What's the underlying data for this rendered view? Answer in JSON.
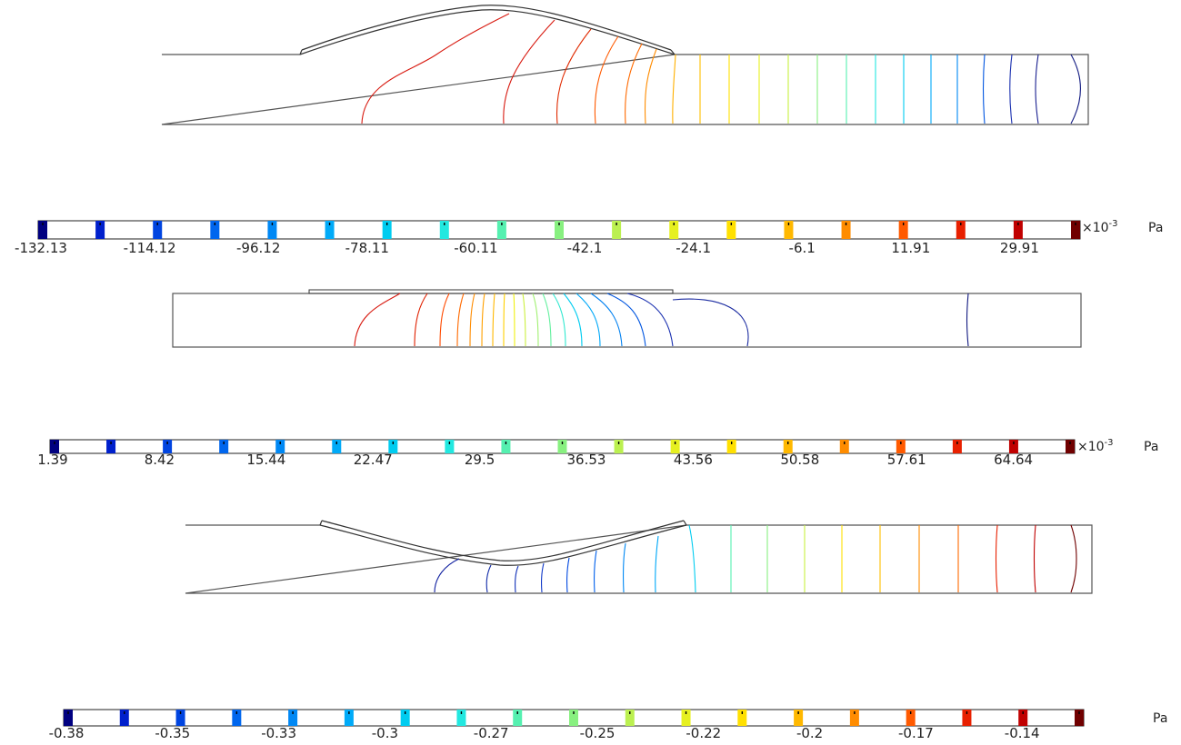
{
  "palette": [
    "#000080",
    "#0020cc",
    "#0044e0",
    "#0066ee",
    "#0088f4",
    "#00aaf8",
    "#00ccf0",
    "#22e8e0",
    "#55f0b0",
    "#88f080",
    "#bbf050",
    "#e6f020",
    "#ffe000",
    "#ffb800",
    "#ff8c00",
    "#ff5a00",
    "#e82000",
    "#c00000",
    "#700000"
  ],
  "colorbars": [
    {
      "ticks": [
        "-132.13",
        "-114.12",
        "-96.12",
        "-78.11",
        "-60.11",
        "-42.1",
        "-24.1",
        "-6.1",
        "11.91",
        "29.91"
      ],
      "exponent_base": "×10",
      "exponent": "-3",
      "unit": "Pa"
    },
    {
      "ticks": [
        "1.39",
        "8.42",
        "15.44",
        "22.47",
        "29.5",
        "36.53",
        "43.56",
        "50.58",
        "57.61",
        "64.64"
      ],
      "exponent_base": "×10",
      "exponent": "-3",
      "unit": "Pa"
    },
    {
      "ticks": [
        "-0.38",
        "-0.35",
        "-0.33",
        "-0.3",
        "-0.27",
        "-0.25",
        "-0.22",
        "-0.2",
        "-0.17",
        "-0.14"
      ],
      "exponent_base": "",
      "exponent": "",
      "unit": "Pa"
    }
  ]
}
